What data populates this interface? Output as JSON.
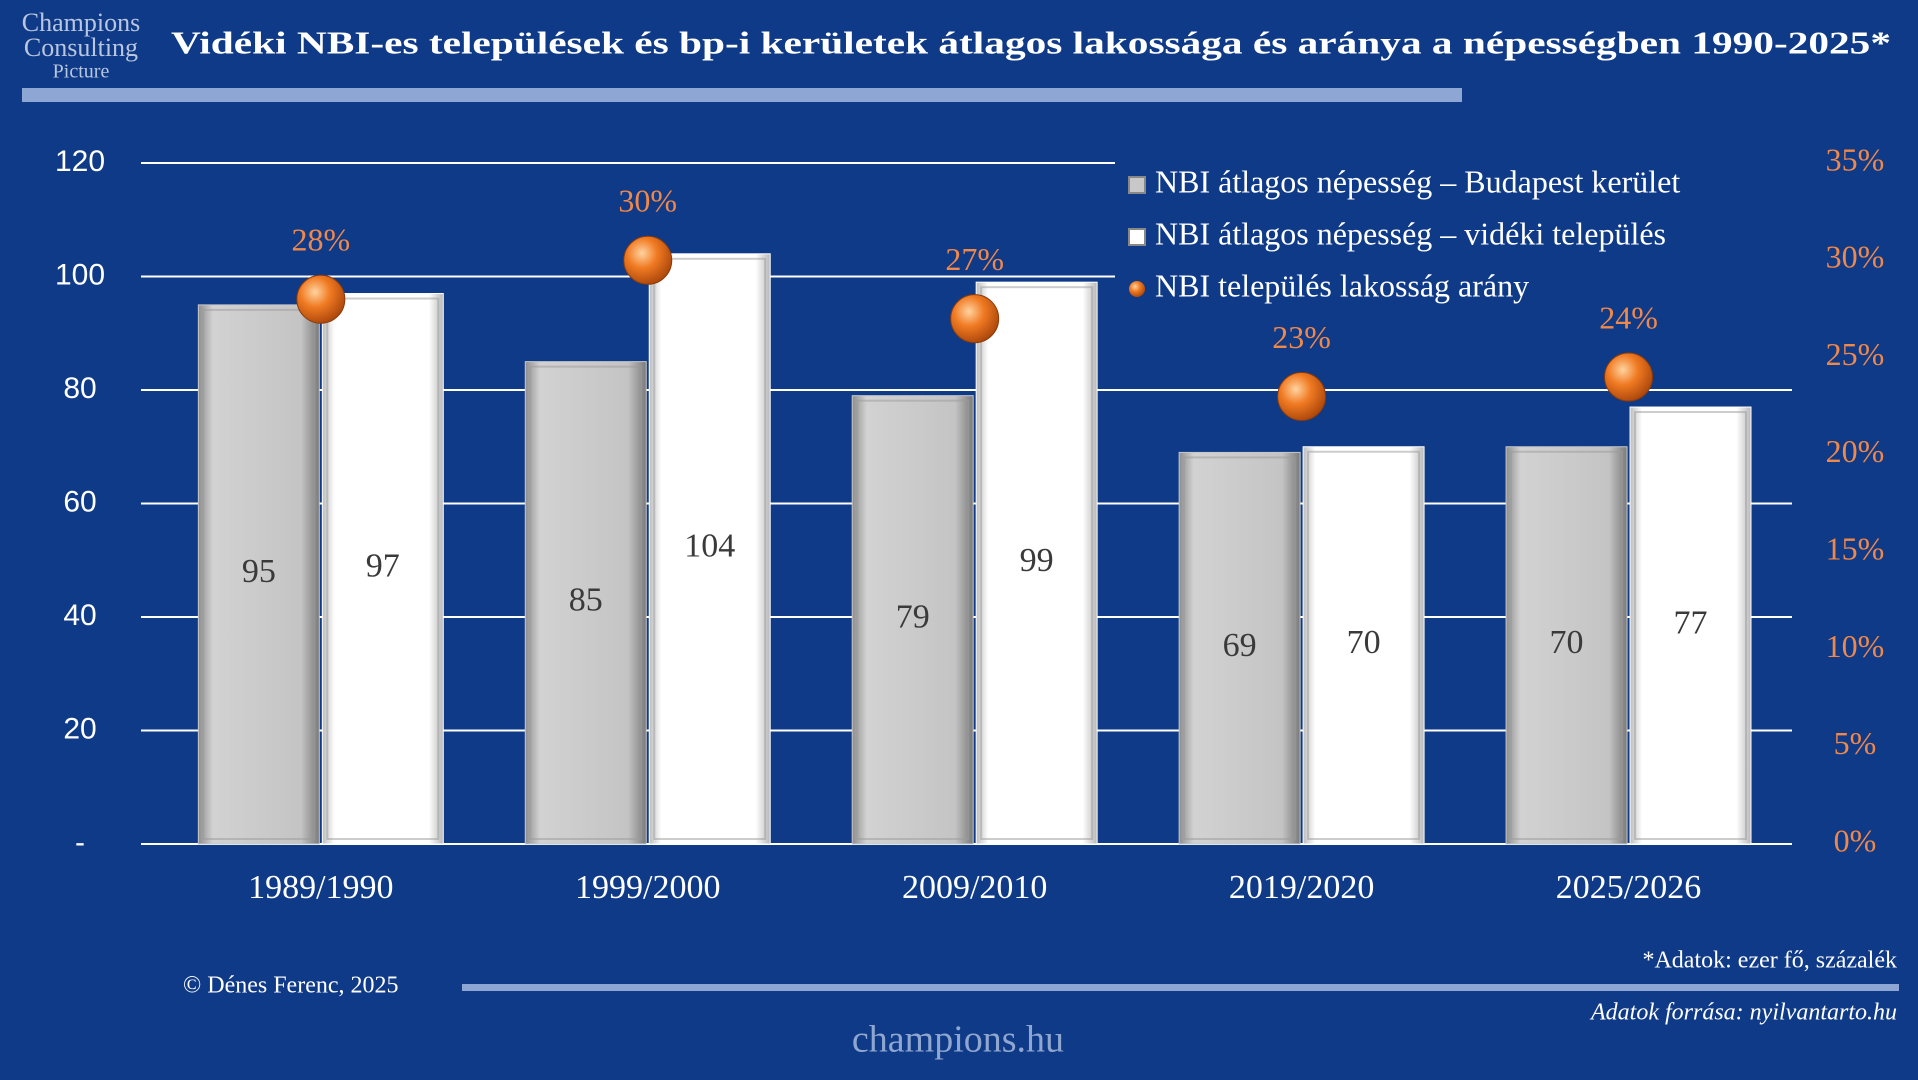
{
  "logo": [
    "Champions",
    "Consulting",
    "Picture"
  ],
  "chart_data": {
    "type": "bar",
    "title": "Vidéki NBI-es települések és bp-i kerületek átlagos lakossága és aránya a népességben 1990-2025*",
    "categories": [
      "1989/1990",
      "1999/2000",
      "2009/2010",
      "2019/2020",
      "2025/2026"
    ],
    "series": [
      {
        "name": "NBI átlagos népesség – Budapest kerület",
        "color": "#c8c8c8",
        "values": [
          95,
          85,
          79,
          69,
          70
        ]
      },
      {
        "name": "NBI átlagos népesség – vidéki település",
        "color": "#ffffff",
        "values": [
          97,
          104,
          99,
          70,
          77
        ]
      },
      {
        "name": "NBI település lakosság arány",
        "color": "#f07a22",
        "type": "scatter",
        "axis": "y2",
        "values": [
          28,
          30,
          27,
          23,
          24
        ],
        "value_labels": [
          "28%",
          "30%",
          "27%",
          "23%",
          "24%"
        ]
      }
    ],
    "ylim": [
      0,
      120
    ],
    "yticks": [
      {
        "value": 0,
        "label": "-"
      },
      20,
      40,
      60,
      80,
      100,
      120
    ],
    "y2lim": [
      0,
      35
    ],
    "y2ticks": [
      {
        "value": 0,
        "label": "0%"
      },
      {
        "value": 5,
        "label": "5%"
      },
      {
        "value": 10,
        "label": "10%"
      },
      {
        "value": 15,
        "label": "15%"
      },
      {
        "value": 20,
        "label": "20%"
      },
      {
        "value": 25,
        "label": "25%"
      },
      {
        "value": 30,
        "label": "30%"
      },
      {
        "value": 35,
        "label": "35%"
      }
    ],
    "grid": true,
    "legend": "upper right"
  },
  "credit": "© Dénes Ferenc, 2025",
  "note": "*Adatok: ezer fő, százalék",
  "source": "Adatok forrása: nyilvantarto.hu",
  "website": "champions.hu"
}
